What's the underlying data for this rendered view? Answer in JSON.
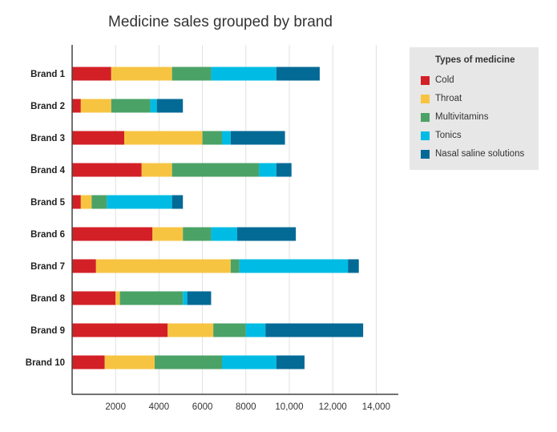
{
  "chart_data": {
    "type": "bar",
    "orientation": "horizontal",
    "stacked": true,
    "title": "Medicine sales grouped by brand",
    "xlabel": "",
    "ylabel": "",
    "xlim": [
      0,
      15000
    ],
    "ticks": [
      2000,
      4000,
      6000,
      8000,
      10000,
      12000,
      14000
    ],
    "tick_labels": [
      "2000",
      "4000",
      "6000",
      "8000",
      "10,000",
      "12,000",
      "14,000"
    ],
    "grid": "vertical",
    "legend_position": "top-right",
    "legend_title": "Types of medicine",
    "categories": [
      "Brand 1",
      "Brand 2",
      "Brand 3",
      "Brand 4",
      "Brand 5",
      "Brand 6",
      "Brand 7",
      "Brand 8",
      "Brand 9",
      "Brand 10"
    ],
    "series": [
      {
        "name": "Cold",
        "color": "#d32027",
        "values": [
          1800,
          400,
          2400,
          3200,
          400,
          3700,
          1100,
          2000,
          4400,
          1500
        ]
      },
      {
        "name": "Throat",
        "color": "#f7c442",
        "values": [
          2800,
          1400,
          3600,
          1400,
          500,
          1400,
          6200,
          200,
          2100,
          2300
        ]
      },
      {
        "name": "Multivitamins",
        "color": "#4ba267",
        "values": [
          1800,
          1800,
          900,
          4000,
          700,
          1300,
          400,
          2900,
          1500,
          3100
        ]
      },
      {
        "name": "Tonics",
        "color": "#00bce4",
        "values": [
          3000,
          300,
          400,
          800,
          3000,
          1200,
          5000,
          200,
          900,
          2500
        ]
      },
      {
        "name": "Nasal saline solutions",
        "color": "#036a96",
        "values": [
          2000,
          1200,
          2500,
          700,
          500,
          2700,
          500,
          1100,
          4500,
          1300
        ]
      }
    ]
  }
}
